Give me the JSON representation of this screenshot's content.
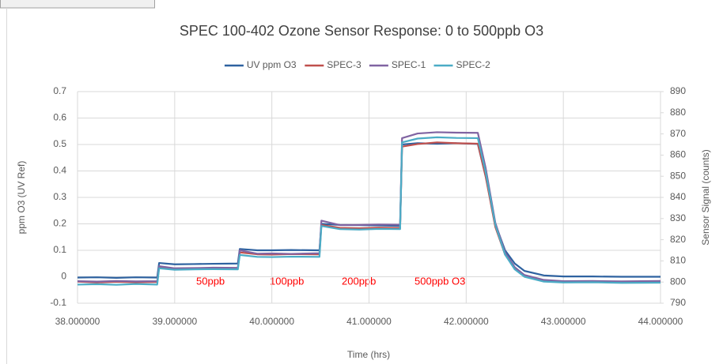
{
  "chart_data": {
    "type": "line",
    "title": "SPEC 100-402 Ozone Sensor Response: 0 to 500ppb O3",
    "x_label": "Time (hrs)",
    "y_label": "ppm O3 (UV Ref)",
    "y2_label": "Sensor Signal (counts)",
    "annotations": [
      "50ppb",
      "100ppb",
      "200ppb",
      "500ppb O3"
    ],
    "x": [
      38.0,
      38.2,
      38.4,
      38.6,
      38.82,
      38.84,
      39.0,
      39.2,
      39.4,
      39.65,
      39.67,
      39.85,
      40.0,
      40.2,
      40.49,
      40.51,
      40.7,
      40.9,
      41.1,
      41.32,
      41.34,
      41.5,
      41.7,
      41.9,
      42.12,
      42.2,
      42.3,
      42.4,
      42.5,
      42.6,
      42.8,
      43.0,
      43.3,
      43.6,
      44.0
    ],
    "series": [
      {
        "name": "UV ppm O3",
        "color": "#2e62a0",
        "values": [
          -0.003,
          -0.002,
          -0.004,
          -0.002,
          -0.003,
          0.052,
          0.047,
          0.048,
          0.049,
          0.05,
          0.105,
          0.1,
          0.1,
          0.101,
          0.1,
          0.2,
          0.196,
          0.195,
          0.194,
          0.192,
          0.5,
          0.505,
          0.503,
          0.505,
          0.502,
          0.38,
          0.2,
          0.1,
          0.05,
          0.022,
          0.005,
          0.001,
          0.001,
          0,
          0
        ]
      },
      {
        "name": "SPEC-3",
        "color": "#c0504d",
        "axis": "y2",
        "values": [
          800.2,
          799.8,
          800.1,
          799.9,
          800,
          807,
          806.2,
          806.3,
          806.5,
          806.4,
          814,
          813.1,
          813,
          813.2,
          813.1,
          827,
          825.6,
          825.4,
          825.7,
          825.5,
          864,
          865.2,
          866,
          865.6,
          865.4,
          850,
          826,
          813,
          806.5,
          803,
          800.8,
          800.2,
          800.3,
          800,
          800.2
        ]
      },
      {
        "name": "SPEC-1",
        "color": "#8064a2",
        "axis": "y2",
        "values": [
          800.4,
          800.2,
          800.5,
          800.3,
          800.4,
          807.5,
          806.5,
          806.6,
          806.8,
          806.7,
          815,
          813.4,
          813.5,
          813.3,
          813.6,
          829,
          826.9,
          827,
          827.2,
          827.1,
          868,
          870.2,
          870.8,
          870.6,
          870.5,
          854,
          828,
          814,
          807,
          803.3,
          801,
          800.4,
          800.5,
          800.3,
          800.5
        ]
      },
      {
        "name": "SPEC-2",
        "color": "#4bacc6",
        "axis": "y2",
        "values": [
          798.8,
          799,
          798.7,
          799.1,
          798.8,
          806.5,
          805.8,
          806,
          806.1,
          806,
          812.8,
          811.9,
          811.8,
          812,
          811.9,
          826.5,
          825,
          824.8,
          825.1,
          825,
          866,
          867.8,
          868.4,
          868.1,
          868,
          852,
          827,
          813,
          806,
          802.5,
          800.2,
          799.8,
          799.9,
          799.6,
          799.7
        ]
      }
    ],
    "xlim": [
      38.0,
      44.0
    ],
    "xticks": [
      {
        "value": 38,
        "label": "38.000000"
      },
      {
        "value": 39,
        "label": "39.000000"
      },
      {
        "value": 40,
        "label": "40.000000"
      },
      {
        "value": 41,
        "label": "41.000000"
      },
      {
        "value": 42,
        "label": "42.000000"
      },
      {
        "value": 43,
        "label": "43.000000"
      },
      {
        "value": 44,
        "label": "44.000000"
      }
    ],
    "ylim": [
      -0.1,
      0.7
    ],
    "yticks": [
      -0.1,
      0,
      0.1,
      0.2,
      0.3,
      0.4,
      0.5,
      0.6,
      0.7
    ],
    "y2lim": [
      790,
      890
    ],
    "y2ticks": [
      790,
      800,
      810,
      820,
      830,
      840,
      850,
      860,
      870,
      880,
      890
    ],
    "grid": true,
    "legend": "top"
  }
}
